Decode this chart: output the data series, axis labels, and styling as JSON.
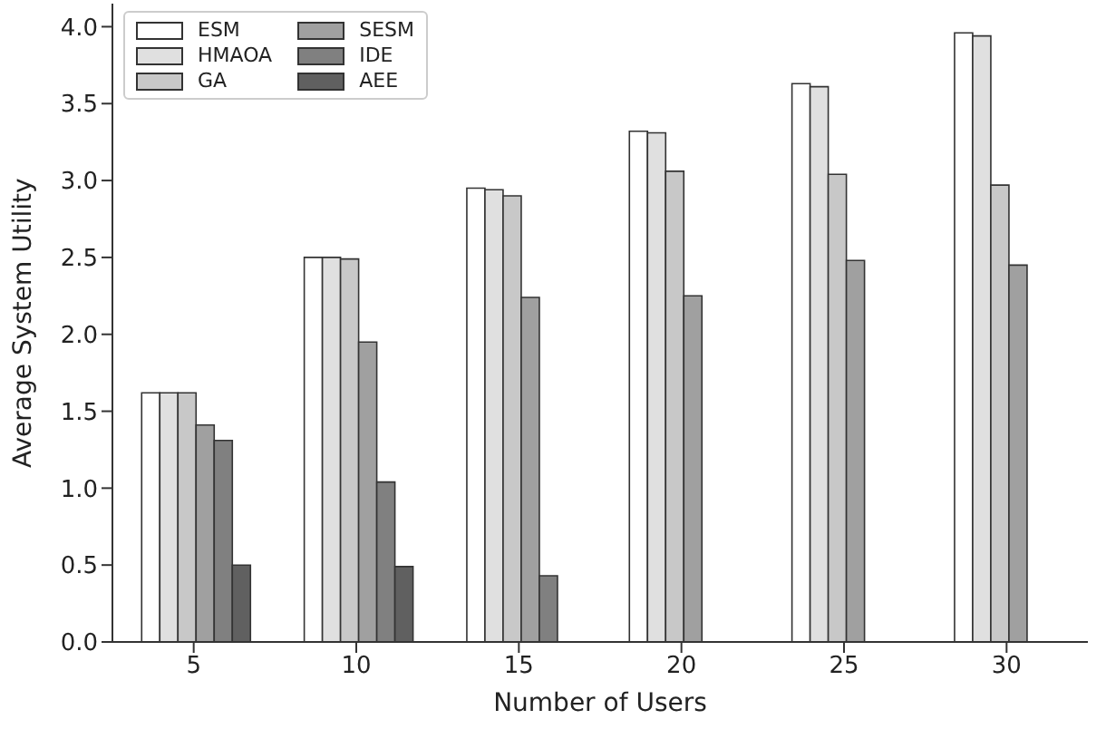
{
  "chart_data": {
    "type": "bar",
    "xlabel": "Number of Users",
    "ylabel": "Average System Utility",
    "categories": [
      "5",
      "10",
      "15",
      "20",
      "25",
      "30"
    ],
    "ylim": [
      0,
      4.15
    ],
    "yticks": [
      {
        "value": 0,
        "label": "0.0"
      },
      0.5,
      {
        "value": 1,
        "label": "1.0"
      },
      1.5,
      {
        "value": 2,
        "label": "2.0"
      },
      2.5,
      {
        "value": 3,
        "label": "3.0"
      },
      3.5,
      {
        "value": 4,
        "label": "4.0"
      }
    ],
    "grid": false,
    "legend": "top left",
    "series": [
      {
        "name": "ESM",
        "color": "#ffffff",
        "values": [
          1.62,
          2.5,
          2.95,
          3.32,
          3.63,
          3.96
        ]
      },
      {
        "name": "HMAOA",
        "color": "#e0e0e0",
        "values": [
          1.62,
          2.5,
          2.94,
          3.31,
          3.61,
          3.94
        ]
      },
      {
        "name": "GA",
        "color": "#c8c8c8",
        "values": [
          1.62,
          2.49,
          2.9,
          3.06,
          3.04,
          2.97
        ]
      },
      {
        "name": "SESM",
        "color": "#a0a0a0",
        "values": [
          1.41,
          1.95,
          2.24,
          2.25,
          2.48,
          2.45
        ]
      },
      {
        "name": "IDE",
        "color": "#808080",
        "values": [
          1.31,
          1.04,
          0.43,
          0,
          0,
          0
        ]
      },
      {
        "name": "AEE",
        "color": "#606060",
        "values": [
          0.5,
          0.49,
          0,
          0,
          0,
          0
        ]
      }
    ]
  }
}
